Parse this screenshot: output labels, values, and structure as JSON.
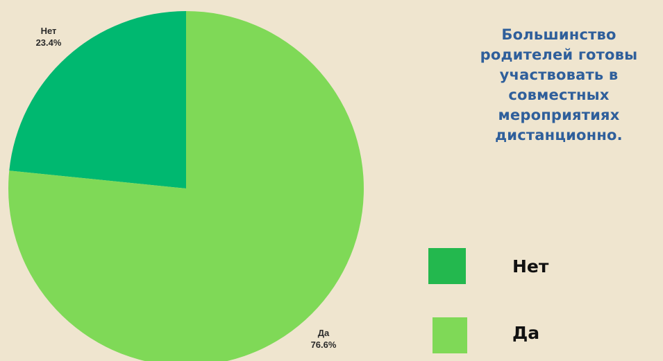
{
  "chart_data": {
    "type": "pie",
    "categories": [
      "Нет",
      "Да"
    ],
    "values": [
      23.4,
      76.6
    ],
    "labels": [
      "23.4%",
      "76.6%"
    ],
    "colors": [
      "#00b870",
      "#7fd957"
    ],
    "legend": {
      "placement": "bottom-right",
      "entries": [
        {
          "label": "Нет",
          "color": "#23b84e"
        },
        {
          "label": "Да",
          "color": "#7fd957"
        }
      ]
    }
  },
  "caption": {
    "lines": [
      "Большинство",
      "родителей готовы",
      "участвовать в",
      "совместных",
      "мероприятиях",
      "дистанционно."
    ],
    "color": "#2f5f9b"
  },
  "background": "#efe5cf"
}
